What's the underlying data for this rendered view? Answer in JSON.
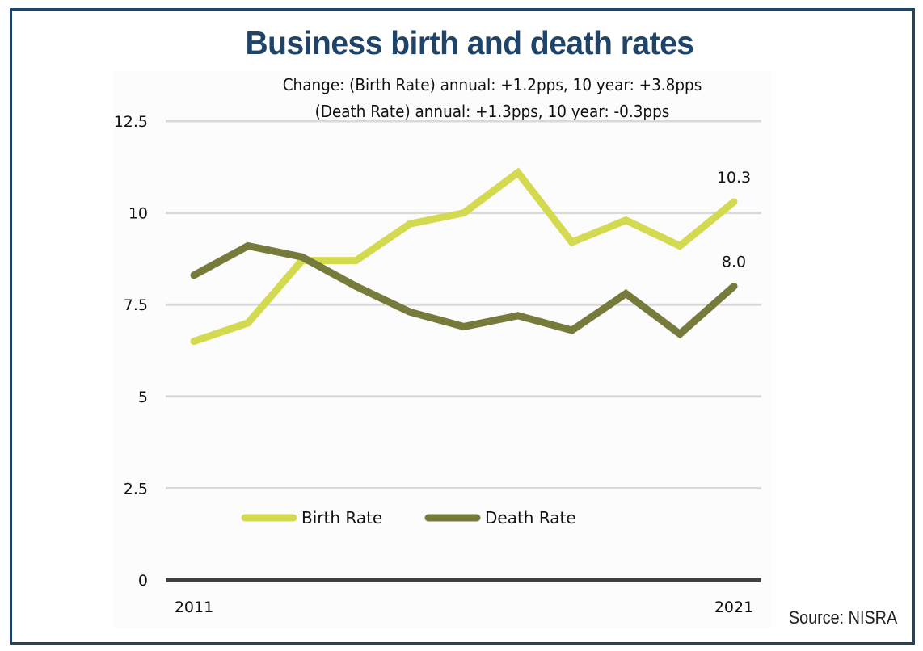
{
  "chart_data": {
    "type": "line",
    "title": "Business birth and death rates",
    "subtitle_lines": [
      "Change: (Birth Rate) annual: +1.2pps, 10 year: +3.8pps",
      "(Death Rate) annual: +1.3pps, 10 year: -0.3pps"
    ],
    "xlabel": "",
    "ylabel": "",
    "x": [
      2011,
      2012,
      2013,
      2014,
      2015,
      2016,
      2017,
      2018,
      2019,
      2020,
      2021
    ],
    "x_tick_labels": [
      "2011",
      "2021"
    ],
    "y_ticks": [
      0,
      2.5,
      5,
      7.5,
      10,
      12.5
    ],
    "y_tick_labels": [
      "0",
      "2.5",
      "5",
      "7.5",
      "10",
      "12.5"
    ],
    "ylim": [
      0,
      12.5
    ],
    "grid": true,
    "legend_position": "bottom-left inside plot",
    "series": [
      {
        "name": "Birth Rate",
        "color": "#d4da50",
        "values": [
          6.5,
          7.0,
          8.7,
          8.7,
          9.7,
          10.0,
          11.1,
          9.2,
          9.8,
          9.1,
          10.3
        ],
        "end_label": "10.3"
      },
      {
        "name": "Death Rate",
        "color": "#767b3b",
        "values": [
          8.3,
          9.1,
          8.8,
          8.0,
          7.3,
          6.9,
          7.2,
          6.8,
          7.8,
          6.7,
          8.0
        ],
        "end_label": "8.0"
      }
    ],
    "source": "Source: NISRA"
  },
  "colors": {
    "title": "#1f4468",
    "frame": "#1f4468",
    "grid": "#d9d9d9",
    "axis": "#404040"
  }
}
